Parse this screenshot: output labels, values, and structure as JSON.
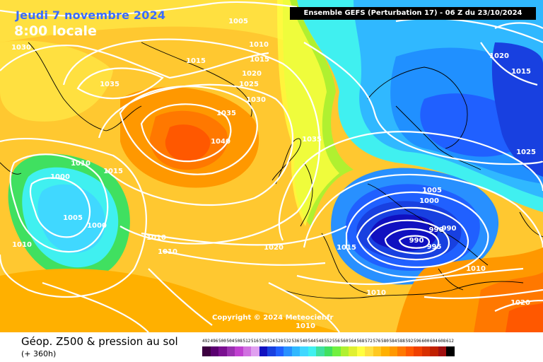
{
  "header": {
    "date": "Jeudi 7 novembre 2024",
    "local_time": "8:00 locale",
    "run_title": "Ensemble GEFS  (Perturbation 17)  -  06 Z du 23/10/2024"
  },
  "map": {
    "copyright": "Copyright © 2024 Meteociel.fr",
    "pressure_labels": [
      "1005",
      "1030",
      "1010",
      "1015",
      "1015",
      "1020",
      "1025",
      "1030",
      "1035",
      "1035",
      "1040",
      "1035",
      "1010",
      "1015",
      "1000",
      "1005",
      "1000",
      "1010",
      "1010",
      "1010",
      "1020",
      "1015",
      "1005",
      "1000",
      "990",
      "990",
      "990",
      "995",
      "1010",
      "1010",
      "1010",
      "1020",
      "1015",
      "1025",
      "1020"
    ]
  },
  "footer": {
    "product": "Géop. Z500 & pression au sol",
    "lead": "(+ 360h)"
  },
  "legend": {
    "values": [
      "492",
      "496",
      "500",
      "504",
      "508",
      "512",
      "516",
      "520",
      "524",
      "528",
      "532",
      "536",
      "540",
      "544",
      "548",
      "552",
      "556",
      "560",
      "564",
      "568",
      "572",
      "576",
      "580",
      "584",
      "588",
      "592",
      "596",
      "600",
      "604",
      "608",
      "612"
    ],
    "colors": [
      "#3c0040",
      "#5a0070",
      "#7a1090",
      "#9a30b0",
      "#c040d0",
      "#d070e0",
      "#e0a0f0",
      "#1010c0",
      "#1840e0",
      "#2060ff",
      "#2890ff",
      "#30b8ff",
      "#40d8ff",
      "#40f0f0",
      "#40e0a0",
      "#40e060",
      "#70f040",
      "#b0f030",
      "#e0f030",
      "#ffff40",
      "#ffe040",
      "#ffc820",
      "#ffb000",
      "#ff9800",
      "#ff7800",
      "#ff5800",
      "#f04000",
      "#d83000",
      "#c02000",
      "#a01010",
      "#000000"
    ]
  }
}
